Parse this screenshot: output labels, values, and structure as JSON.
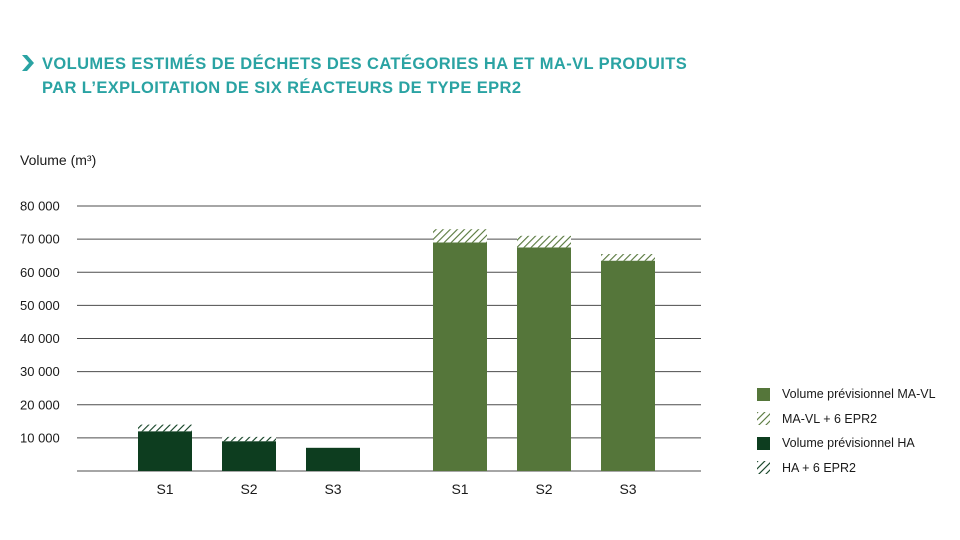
{
  "title": {
    "line1": "VOLUMES ESTIMÉS DE DÉCHETS DES CATÉGORIES HA ET MA-VL PRODUITS",
    "line2": "PAR L’EXPLOITATION DE SIX RÉACTEURS DE TYPE EPR2"
  },
  "colors": {
    "title": "#2aa3a3",
    "ha": "#0d3d1f",
    "mavl": "#55763a",
    "grid": "#4d4d4d",
    "axis": "#1a1a1a"
  },
  "chart_data": {
    "type": "bar",
    "stacked": true,
    "ylabel": "Volume (m³)",
    "ylim": [
      0,
      80000
    ],
    "yticks": [
      10000,
      20000,
      30000,
      40000,
      50000,
      60000,
      70000,
      80000
    ],
    "ytick_labels": [
      "10 000",
      "20 000",
      "30 000",
      "40 000",
      "50 000",
      "60 000",
      "70 000",
      "80 000"
    ],
    "grid": true,
    "legend_position": "right",
    "groups": [
      {
        "category": "HA",
        "categories": [
          "S1",
          "S2",
          "S3"
        ],
        "series": [
          {
            "name": "Volume prévisionnel HA",
            "values": [
              12000,
              9000,
              7000
            ],
            "pattern": "solid",
            "color": "#0d3d1f"
          },
          {
            "name": "HA + 6 EPR2",
            "values": [
              2000,
              1300,
              0
            ],
            "pattern": "hatched",
            "color": "#0d3d1f"
          }
        ]
      },
      {
        "category": "MA-VL",
        "categories": [
          "S1",
          "S2",
          "S3"
        ],
        "series": [
          {
            "name": "Volume prévisionnel MA-VL",
            "values": [
              69000,
              67500,
              63500
            ],
            "pattern": "solid",
            "color": "#55763a"
          },
          {
            "name": "MA-VL + 6 EPR2",
            "values": [
              4000,
              3500,
              2000
            ],
            "pattern": "hatched",
            "color": "#55763a"
          }
        ]
      }
    ]
  },
  "legend": [
    {
      "label": "Volume prévisionnel MA-VL",
      "swatch": "solid-mavl"
    },
    {
      "label": "MA-VL + 6 EPR2",
      "swatch": "hatch-mavl"
    },
    {
      "label": "Volume prévisionnel HA",
      "swatch": "solid-ha"
    },
    {
      "label": "HA + 6 EPR2",
      "swatch": "hatch-ha"
    }
  ]
}
